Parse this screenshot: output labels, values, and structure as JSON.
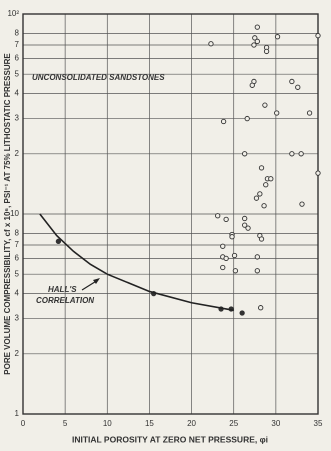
{
  "chart_data": {
    "type": "scatter",
    "xlabel": "INITIAL POROSITY AT ZERO NET PRESSURE, φi",
    "ylabel": "PORE VOLUME COMPRESSIBILITY, cf x 10⁶, PSI⁻¹ AT 75% LITHOSTATIC PRESSURE",
    "xlim": [
      0,
      35
    ],
    "xticks": [
      0,
      5,
      10,
      15,
      20,
      25,
      30,
      35
    ],
    "ylim": [
      1,
      100
    ],
    "log_y": true,
    "grid": true,
    "yticks": [
      1,
      2,
      3,
      4,
      5,
      6,
      7,
      8,
      10,
      {
        "value": 20,
        "label": "2"
      },
      {
        "value": 30,
        "label": "3"
      },
      {
        "value": 40,
        "label": "4"
      },
      {
        "value": 50,
        "label": "5"
      },
      {
        "value": 60,
        "label": "6"
      },
      {
        "value": 70,
        "label": "7"
      },
      {
        "value": 80,
        "label": "8"
      },
      {
        "value": 100,
        "label": "10²"
      }
    ],
    "annotations": [
      "UNCONSOLIDATED SANDSTONES",
      "HALL'S",
      "CORRELATION"
    ],
    "series": [
      {
        "type": "scatter",
        "marker": "open",
        "color": "#333333",
        "x": [
          22.3,
          27.8,
          27.5,
          27.8,
          27.4,
          28.9,
          28.9,
          30.2,
          35,
          27.4,
          27.2,
          23.8,
          26.6,
          28.7,
          30.1,
          31.9,
          32.6,
          34,
          26.3,
          31.9,
          33,
          35,
          28.3,
          29,
          28.8,
          29.4,
          28.1,
          27.7,
          28.6,
          33.1,
          26.3,
          23.1,
          24.1,
          26.3,
          26.7,
          24.8,
          24.8,
          28.1,
          28.3,
          23.7,
          23.7,
          24.1,
          25.1,
          27.8,
          23.7,
          25.2,
          27.8,
          28.2
        ],
        "values": [
          71,
          86,
          76,
          73,
          70,
          68,
          65,
          77,
          78,
          46,
          44,
          29,
          30,
          35,
          32,
          46,
          43,
          32,
          20,
          20,
          20,
          16,
          17,
          15,
          14,
          15,
          12.6,
          12,
          11,
          11.2,
          9.5,
          9.8,
          9.4,
          8.8,
          8.5,
          7.9,
          7.7,
          7.8,
          7.5,
          6.9,
          6.1,
          6,
          6.2,
          6.1,
          5.4,
          5.2,
          5.2,
          3.4
        ]
      },
      {
        "type": "scatter",
        "marker": "filled",
        "color": "#333333",
        "x": [
          4.2,
          15.5,
          23.5,
          24.7,
          26
        ],
        "values": [
          7.3,
          4,
          3.35,
          3.35,
          3.2
        ]
      },
      {
        "type": "line",
        "color": "#222222",
        "x": [
          2,
          4,
          6,
          8,
          10,
          15,
          20,
          25
        ],
        "values": [
          10,
          7.8,
          6.5,
          5.6,
          5,
          4.1,
          3.6,
          3.3
        ]
      }
    ]
  }
}
